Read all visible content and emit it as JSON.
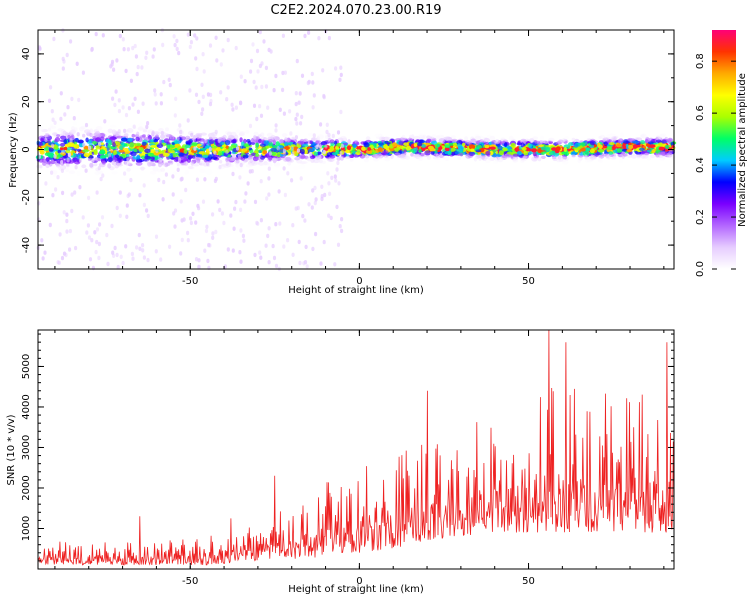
{
  "title": "C2E2.2024.070.23.00.R19",
  "colors": {
    "snr_line": "#ee2222",
    "colormap": [
      "#ffffff",
      "#e6ccff",
      "#b366ff",
      "#7a00ff",
      "#0000ff",
      "#00ccff",
      "#00ff66",
      "#aaff00",
      "#ffff00",
      "#ffaa00",
      "#ff3300",
      "#ff0077"
    ]
  },
  "chart_data": [
    {
      "type": "heatmap",
      "xlabel": "Height of straight line (km)",
      "ylabel": "Frequency (Hz)",
      "xlim": [
        -95,
        93
      ],
      "ylim": [
        -50,
        50
      ],
      "xticks": [
        -50,
        0,
        50
      ],
      "yticks": [
        -40,
        -20,
        0,
        20,
        40
      ],
      "colorbar": {
        "label": "Normalized spectral amplitude",
        "range": [
          0.0,
          0.92
        ],
        "ticks": [
          "0.0",
          "0.2",
          "0.4",
          "0.6",
          "0.8"
        ]
      },
      "ridge_center_hz": {
        "x": [
          -95,
          -80,
          -60,
          -40,
          -20,
          0,
          10,
          20,
          40,
          60,
          80,
          93
        ],
        "y": [
          0,
          0,
          0,
          0,
          0,
          0,
          1,
          1,
          0,
          0,
          1,
          1
        ]
      },
      "band_halfwidth_hz": {
        "x": [
          -95,
          -60,
          -40,
          -20,
          0,
          40,
          93
        ],
        "y": [
          6,
          6,
          5,
          4,
          3,
          3,
          3
        ]
      }
    },
    {
      "type": "line",
      "xlabel": "Height of straight line (km)",
      "ylabel": "SNR (10 * v/v)",
      "xlim": [
        -95,
        93
      ],
      "ylim": [
        0,
        5900
      ],
      "xticks": [
        -50,
        0,
        50
      ],
      "yticks": [
        1000,
        2000,
        3000,
        4000,
        5000
      ],
      "series": [
        {
          "envelope_x": [
            -95,
            -80,
            -60,
            -45,
            -30,
            -20,
            -10,
            0,
            10,
            20,
            30,
            40,
            50,
            60,
            70,
            80,
            93
          ],
          "envelope_low": [
            100,
            100,
            100,
            100,
            200,
            250,
            300,
            400,
            500,
            700,
            800,
            900,
            900,
            900,
            900,
            900,
            900
          ],
          "envelope_high": [
            700,
            650,
            700,
            800,
            1100,
            1600,
            2200,
            2500,
            2800,
            3200,
            3500,
            4000,
            4500,
            4900,
            4600,
            4400,
            4600
          ],
          "peaks": [
            {
              "x": -65,
              "y": 1300
            },
            {
              "x": -38,
              "y": 1250
            },
            {
              "x": -25,
              "y": 2300
            },
            {
              "x": 20,
              "y": 4400
            },
            {
              "x": 56,
              "y": 5900
            },
            {
              "x": 61,
              "y": 5600
            },
            {
              "x": 91,
              "y": 5600
            }
          ]
        }
      ]
    }
  ]
}
